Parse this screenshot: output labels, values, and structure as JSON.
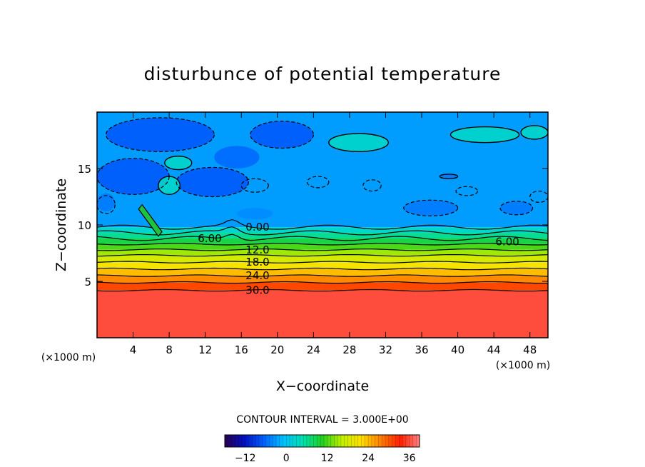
{
  "chart_data": {
    "type": "heatmap",
    "title": "disturbunce of potential temperature",
    "xlabel": "X−coordinate",
    "ylabel": "Z−coordinate",
    "x_unit_label": "(×1000 m)",
    "y_unit_label": "(×1000 m)",
    "xlim": [
      0,
      50
    ],
    "ylim": [
      0,
      20
    ],
    "x_ticks": [
      4,
      8,
      12,
      16,
      20,
      24,
      28,
      32,
      36,
      40,
      44,
      48
    ],
    "y_ticks": [
      5,
      10,
      15
    ],
    "contour_interval_text": "CONTOUR INTERVAL = 3.000E+00",
    "colorbar": {
      "range": [
        -18,
        39
      ],
      "ticks": [
        -12,
        0,
        12,
        24,
        36
      ],
      "tick_labels": [
        "−12",
        "0",
        "12",
        "24",
        "36"
      ],
      "colors": [
        "#2a0050",
        "#0010c0",
        "#0060ff",
        "#00c0ff",
        "#00e0b0",
        "#20d020",
        "#c0f000",
        "#ffe000",
        "#ff8000",
        "#ff2000",
        "#ff8080"
      ]
    },
    "contour_levels": [
      {
        "value": 0,
        "z": 9.8,
        "label": "0.00"
      },
      {
        "value": 3,
        "z": 9.3,
        "label": ""
      },
      {
        "value": 6,
        "z": 8.8,
        "label": "6.00"
      },
      {
        "value": 9,
        "z": 8.3,
        "label": ""
      },
      {
        "value": 12,
        "z": 7.8,
        "label": "12.0"
      },
      {
        "value": 15,
        "z": 7.3,
        "label": ""
      },
      {
        "value": 18,
        "z": 6.7,
        "label": "18.0"
      },
      {
        "value": 21,
        "z": 6.1,
        "label": ""
      },
      {
        "value": 24,
        "z": 5.5,
        "label": "24.0"
      },
      {
        "value": 27,
        "z": 4.9,
        "label": ""
      },
      {
        "value": 30,
        "z": 4.2,
        "label": "30.0"
      }
    ],
    "extra_labels": [
      {
        "text": "6.00",
        "x": 45.5,
        "z": 8.5
      }
    ],
    "bands": [
      {
        "z0": 0,
        "z1": 4.2,
        "value": 36
      },
      {
        "z0": 4.2,
        "z1": 4.9,
        "value": 31
      },
      {
        "z0": 4.9,
        "z1": 5.5,
        "value": 27
      },
      {
        "z0": 5.5,
        "z1": 6.1,
        "value": 24
      },
      {
        "z0": 6.1,
        "z1": 6.7,
        "value": 21
      },
      {
        "z0": 6.7,
        "z1": 7.3,
        "value": 18
      },
      {
        "z0": 7.3,
        "z1": 7.8,
        "value": 15
      },
      {
        "z0": 7.8,
        "z1": 8.3,
        "value": 12
      },
      {
        "z0": 8.3,
        "z1": 8.8,
        "value": 9
      },
      {
        "z0": 8.8,
        "z1": 9.3,
        "value": 6
      },
      {
        "z0": 9.3,
        "z1": 9.8,
        "value": 3
      },
      {
        "z0": 9.8,
        "z1": 20,
        "value": -3
      }
    ],
    "upper_patches": [
      {
        "x": 7.0,
        "z": 18.0,
        "rx": 6.0,
        "rz": 1.5,
        "value": -7
      },
      {
        "x": 20.5,
        "z": 18.0,
        "rx": 3.5,
        "rz": 1.2,
        "value": -7
      },
      {
        "x": 4.0,
        "z": 14.3,
        "rx": 4.0,
        "rz": 1.6,
        "value": -7
      },
      {
        "x": 12.8,
        "z": 13.8,
        "rx": 4.0,
        "rz": 1.3,
        "value": -7
      },
      {
        "x": 15.5,
        "z": 16.0,
        "rx": 2.5,
        "rz": 1.0,
        "value": -6
      },
      {
        "x": 29.0,
        "z": 17.3,
        "rx": 3.3,
        "rz": 0.8,
        "value": 3
      },
      {
        "x": 43.0,
        "z": 18.0,
        "rx": 3.8,
        "rz": 0.7,
        "value": 3
      },
      {
        "x": 48.5,
        "z": 18.2,
        "rx": 1.5,
        "rz": 0.6,
        "value": 3
      },
      {
        "x": 39.0,
        "z": 14.3,
        "rx": 1.0,
        "rz": 0.2,
        "value": -5
      },
      {
        "x": 9.0,
        "z": 15.5,
        "rx": 1.5,
        "rz": 0.6,
        "value": 3
      },
      {
        "x": 8.0,
        "z": 13.5,
        "rx": 1.2,
        "rz": 0.8,
        "value": 3
      },
      {
        "x": 37.0,
        "z": 11.5,
        "rx": 3.0,
        "rz": 0.7,
        "value": -5
      },
      {
        "x": 46.5,
        "z": 11.5,
        "rx": 1.8,
        "rz": 0.6,
        "value": -5
      },
      {
        "x": 17.5,
        "z": 11.0,
        "rx": 2.0,
        "rz": 0.5,
        "value": -4
      },
      {
        "x": 1.0,
        "z": 12.0,
        "rx": 1.0,
        "rz": 0.8,
        "value": -5
      }
    ],
    "negative_contours": [
      {
        "x": 7.0,
        "z": 18.0,
        "rx": 6.0,
        "rz": 1.5
      },
      {
        "x": 20.5,
        "z": 18.0,
        "rx": 3.5,
        "rz": 1.2
      },
      {
        "x": 4.0,
        "z": 14.3,
        "rx": 4.0,
        "rz": 1.6
      },
      {
        "x": 12.8,
        "z": 13.8,
        "rx": 4.0,
        "rz": 1.3
      },
      {
        "x": 17.5,
        "z": 13.5,
        "rx": 1.5,
        "rz": 0.6
      },
      {
        "x": 24.5,
        "z": 13.8,
        "rx": 1.2,
        "rz": 0.5
      },
      {
        "x": 30.5,
        "z": 13.5,
        "rx": 1.0,
        "rz": 0.5
      },
      {
        "x": 37.0,
        "z": 11.5,
        "rx": 3.0,
        "rz": 0.7
      },
      {
        "x": 41.0,
        "z": 13.0,
        "rx": 1.2,
        "rz": 0.4
      },
      {
        "x": 46.5,
        "z": 11.5,
        "rx": 1.8,
        "rz": 0.6
      },
      {
        "x": 49.0,
        "z": 12.5,
        "rx": 1.0,
        "rz": 0.5
      },
      {
        "x": 1.0,
        "z": 11.8,
        "rx": 1.0,
        "rz": 0.8
      }
    ],
    "positive_contours": [
      {
        "x": 29.0,
        "z": 17.3,
        "rx": 3.3,
        "rz": 0.8
      },
      {
        "x": 43.0,
        "z": 18.0,
        "rx": 3.8,
        "rz": 0.7
      },
      {
        "x": 48.5,
        "z": 18.2,
        "rx": 1.5,
        "rz": 0.6
      },
      {
        "x": 39.0,
        "z": 14.3,
        "rx": 1.0,
        "rz": 0.2
      },
      {
        "x": 9.0,
        "z": 15.5,
        "rx": 1.5,
        "rz": 0.6
      },
      {
        "x": 8.0,
        "z": 13.5,
        "rx": 1.2,
        "rz": 0.8
      }
    ]
  }
}
